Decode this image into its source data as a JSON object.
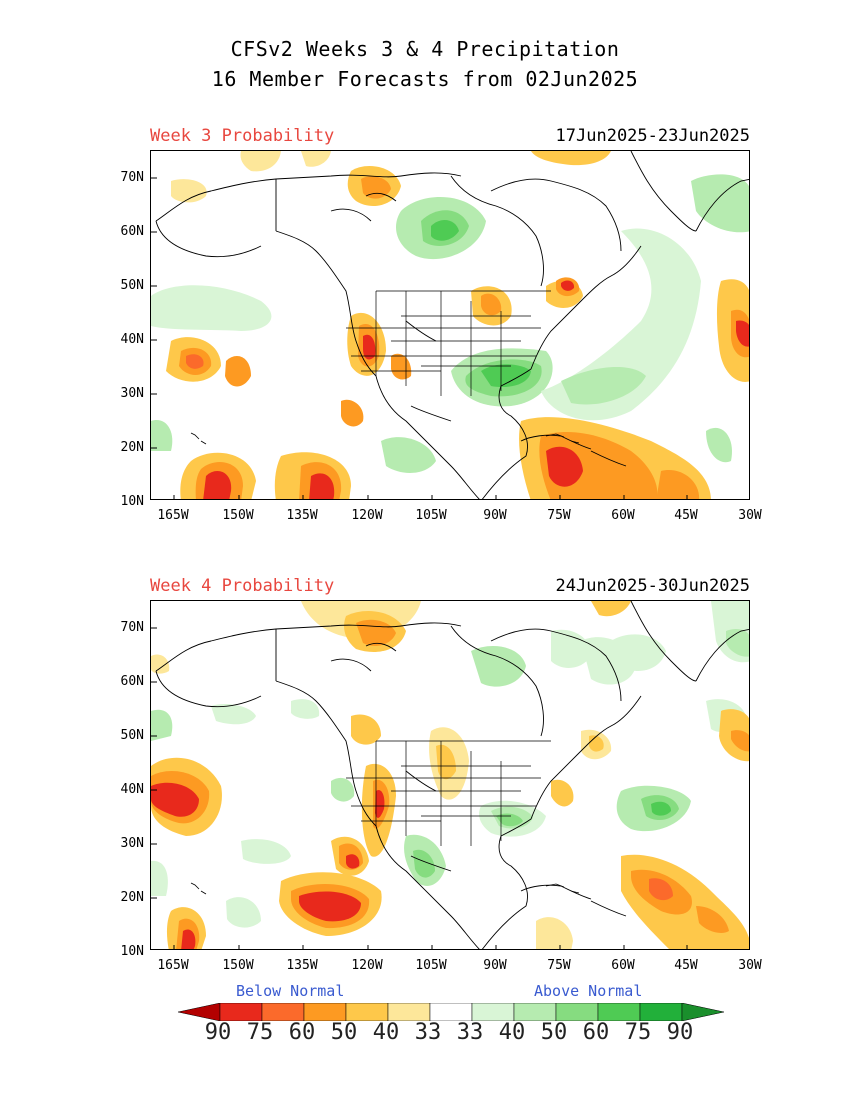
{
  "header": {
    "title_line1": "CFSv2 Weeks 3 & 4 Precipitation",
    "title_line2": "16 Member Forecasts from 02Jun2025"
  },
  "panels": [
    {
      "label": "Week 3 Probability",
      "dates": "17Jun2025-23Jun2025"
    },
    {
      "label": "Week 4 Probability",
      "dates": "24Jun2025-30Jun2025"
    }
  ],
  "axes": {
    "lat_ticks": [
      "70N",
      "60N",
      "50N",
      "40N",
      "30N",
      "20N",
      "10N"
    ],
    "lon_ticks": [
      "165W",
      "150W",
      "135W",
      "120W",
      "105W",
      "90W",
      "75W",
      "60W",
      "45W",
      "30W"
    ]
  },
  "legend": {
    "below_label": "Below Normal",
    "above_label": "Above Normal",
    "values": [
      "90",
      "75",
      "60",
      "50",
      "40",
      "33",
      "33",
      "40",
      "50",
      "60",
      "75",
      "90"
    ],
    "colors": [
      "#b30000",
      "#e8291c",
      "#fb6a2b",
      "#fd9a22",
      "#fec84a",
      "#fde79a",
      "#ffffff",
      "#d9f5d6",
      "#b6ebb0",
      "#86dc80",
      "#4fcb54",
      "#22b03a",
      "#1a8f2c"
    ]
  }
}
